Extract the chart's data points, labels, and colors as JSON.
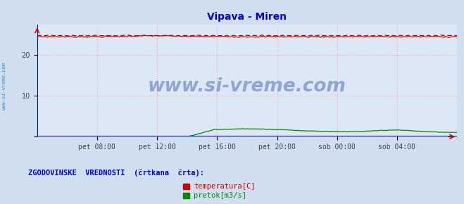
{
  "title": "Vipava - Miren",
  "title_color": "#0000cc",
  "title_fontsize": 10,
  "bg_color": "#d0dff0",
  "plot_bg_color": "#dce8f5",
  "xlabel": "",
  "ylabel": "",
  "ylim": [
    0,
    27.5
  ],
  "yticks": [
    0,
    10,
    20
  ],
  "x_labels": [
    "pet 08:00",
    "pet 12:00",
    "pet 16:00",
    "pet 20:00",
    "sob 00:00",
    "sob 04:00"
  ],
  "grid_color": "#ffaaaa",
  "watermark": "www.si-vreme.com",
  "watermark_color": "#3355aa",
  "watermark_alpha": 0.45,
  "side_text": "www.si-vreme.com",
  "side_text_color": "#2288cc",
  "legend_label1": "temperatura[C]",
  "legend_label2": "pretok[m3/s]",
  "legend_color1": "#cc0000",
  "legend_color2": "#008800",
  "legend_title": "ZGODOVINSKE  VREDNOSTI  (črtkana  črta):",
  "legend_title_color": "#0000cc",
  "temp_color": "#cc0000",
  "flow_color": "#008800",
  "axis_color": "#0000cc",
  "temp_solid_value": 24.5,
  "temp_hist_value": 24.8,
  "n_points": 288
}
